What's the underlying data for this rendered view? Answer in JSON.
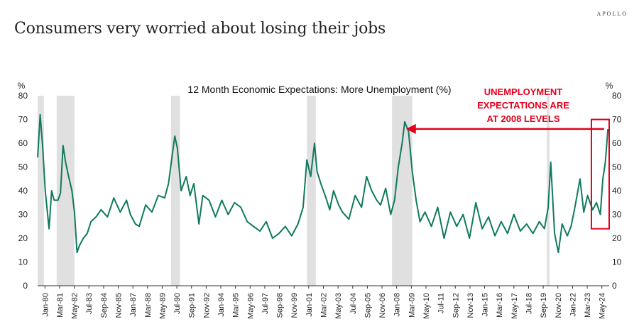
{
  "header": {
    "title": "Consumers very worried about losing their jobs",
    "brand": "APOLLO"
  },
  "chart_data": {
    "type": "line",
    "title": "12 Month Economic Expectations: More Unemployment (%)",
    "ylabel_left": "%",
    "ylabel_right": "%",
    "ylim": [
      0,
      80
    ],
    "yticks": [
      0,
      10,
      20,
      30,
      40,
      50,
      60,
      70,
      80
    ],
    "xlim": [
      1980.0,
      2025.0
    ],
    "x_tick_labels": [
      "Jan-80",
      "Mar-81",
      "May-82",
      "Jul-83",
      "Sep-84",
      "Nov-85",
      "Jan-87",
      "Mar-88",
      "May-89",
      "Jul-90",
      "Sep-91",
      "Nov-92",
      "Jan-94",
      "Mar-95",
      "May-96",
      "Jul-97",
      "Sep-98",
      "Nov-99",
      "Jan-01",
      "Mar-02",
      "May-03",
      "Jul-04",
      "Sep-05",
      "Nov-06",
      "Jan-08",
      "Mar-09",
      "May-10",
      "Jul-11",
      "Sep-12",
      "Nov-13",
      "Jan-15",
      "Mar-16",
      "May-17",
      "Jul-18",
      "Sep-19",
      "Nov-20",
      "Jan-22",
      "Mar-23",
      "May-24"
    ],
    "recessions": [
      [
        1980.0,
        1980.5
      ],
      [
        1981.5,
        1982.9
      ],
      [
        1990.5,
        1991.2
      ],
      [
        2001.2,
        2001.9
      ],
      [
        2007.9,
        2009.5
      ],
      [
        2020.1,
        2020.3
      ]
    ],
    "series": [
      {
        "name": "More Unemployment (%)",
        "color": "#0f7a5e",
        "x": [
          1980.0,
          1980.2,
          1980.4,
          1980.6,
          1980.9,
          1981.1,
          1981.3,
          1981.6,
          1981.8,
          1982.0,
          1982.2,
          1982.4,
          1982.7,
          1982.9,
          1983.1,
          1983.3,
          1983.6,
          1983.9,
          1984.2,
          1984.6,
          1985.0,
          1985.5,
          1986.0,
          1986.5,
          1987.0,
          1987.3,
          1987.7,
          1988.0,
          1988.5,
          1989.0,
          1989.5,
          1990.0,
          1990.3,
          1990.6,
          1990.8,
          1991.0,
          1991.3,
          1991.7,
          1992.0,
          1992.3,
          1992.7,
          1993.0,
          1993.5,
          1994.0,
          1994.5,
          1995.0,
          1995.5,
          1996.0,
          1996.5,
          1997.0,
          1997.5,
          1998.0,
          1998.5,
          1999.0,
          1999.5,
          2000.0,
          2000.5,
          2000.9,
          2001.2,
          2001.5,
          2001.8,
          2002.0,
          2002.3,
          2002.7,
          2003.0,
          2003.3,
          2003.7,
          2004.0,
          2004.5,
          2005.0,
          2005.5,
          2005.9,
          2006.3,
          2006.7,
          2007.0,
          2007.4,
          2007.8,
          2008.1,
          2008.4,
          2008.7,
          2008.9,
          2009.2,
          2009.5,
          2009.8,
          2010.1,
          2010.5,
          2011.0,
          2011.5,
          2012.0,
          2012.5,
          2013.0,
          2013.5,
          2014.0,
          2014.5,
          2015.0,
          2015.5,
          2016.0,
          2016.5,
          2017.0,
          2017.5,
          2018.0,
          2018.5,
          2019.0,
          2019.5,
          2019.9,
          2020.2,
          2020.4,
          2020.7,
          2021.0,
          2021.3,
          2021.7,
          2022.0,
          2022.3,
          2022.7,
          2023.0,
          2023.3,
          2023.7,
          2024.0,
          2024.3,
          2024.5,
          2024.7,
          2024.9
        ],
        "values": [
          54,
          72,
          58,
          40,
          24,
          40,
          36,
          36,
          39,
          59,
          52,
          47,
          40,
          31,
          14,
          17,
          20,
          22,
          27,
          29,
          32,
          29,
          37,
          31,
          36,
          30,
          26,
          25,
          34,
          31,
          38,
          37,
          43,
          55,
          63,
          58,
          40,
          46,
          38,
          43,
          26,
          38,
          36,
          29,
          36,
          30,
          35,
          33,
          27,
          25,
          23,
          27,
          20,
          22,
          25,
          21,
          26,
          33,
          53,
          46,
          60,
          48,
          43,
          37,
          32,
          40,
          34,
          31,
          28,
          38,
          33,
          46,
          40,
          36,
          34,
          41,
          30,
          36,
          50,
          60,
          69,
          65,
          48,
          36,
          27,
          31,
          25,
          33,
          20,
          31,
          25,
          30,
          20,
          35,
          24,
          29,
          21,
          27,
          22,
          30,
          23,
          26,
          22,
          27,
          24,
          33,
          52,
          22,
          14,
          26,
          21,
          25,
          33,
          45,
          31,
          38,
          32,
          35,
          30,
          45,
          52,
          66
        ]
      }
    ],
    "annotation": {
      "lines": [
        "UNEMPLOYMENT",
        "EXPECTATIONS ARE",
        "AT 2008 LEVELS"
      ],
      "color": "#e3001b",
      "arrow_from_year": 2024.6,
      "arrow_to_year": 2009.0,
      "arrow_level": 66,
      "box_years": [
        2023.6,
        2025.0
      ],
      "box_levels": [
        24,
        70
      ]
    }
  }
}
